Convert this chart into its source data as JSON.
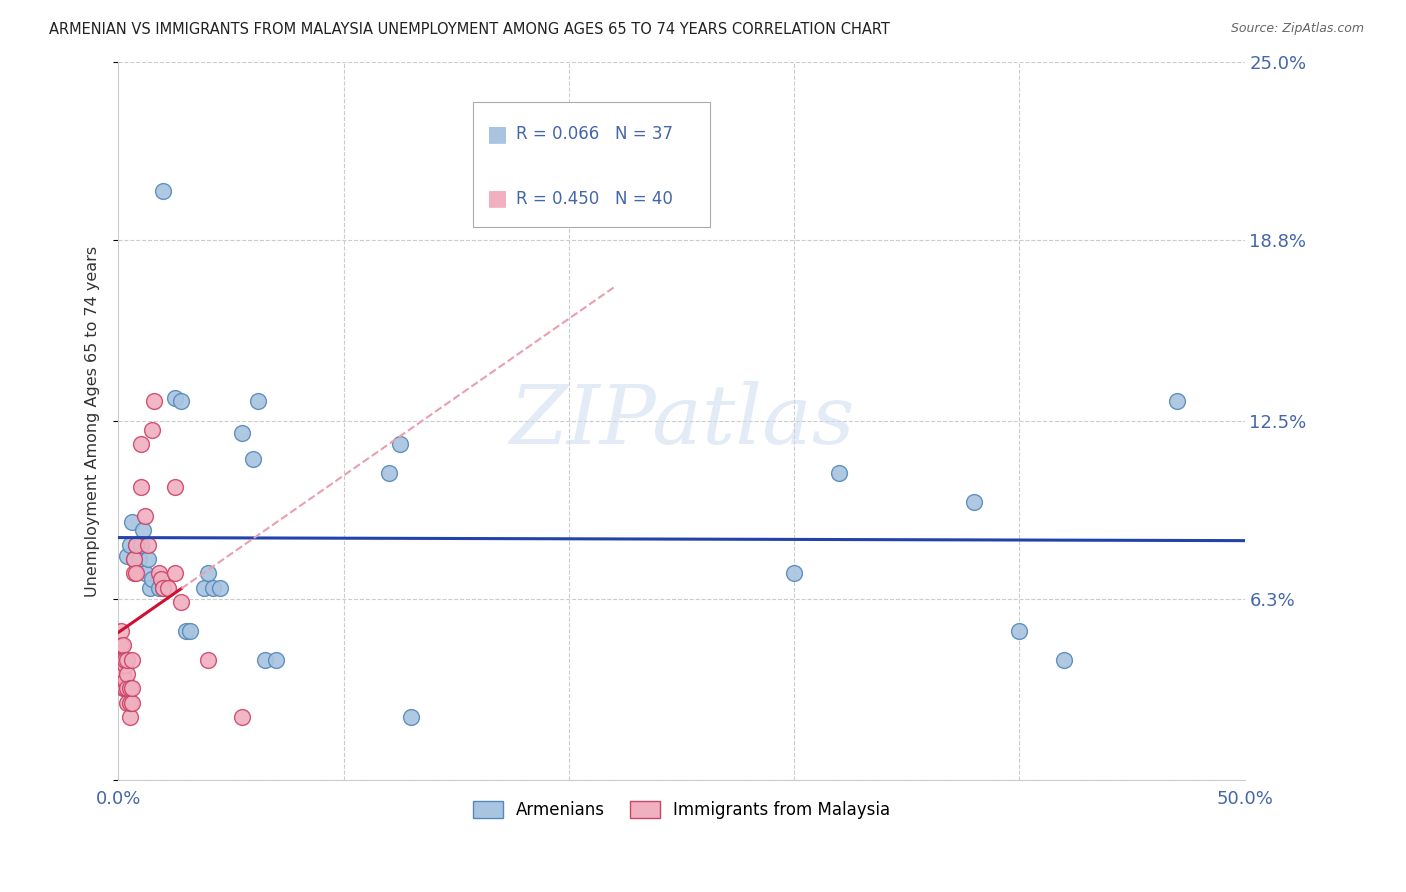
{
  "title": "ARMENIAN VS IMMIGRANTS FROM MALAYSIA UNEMPLOYMENT AMONG AGES 65 TO 74 YEARS CORRELATION CHART",
  "source": "Source: ZipAtlas.com",
  "ylabel": "Unemployment Among Ages 65 to 74 years",
  "xlim": [
    0,
    0.5
  ],
  "ylim": [
    0,
    0.25
  ],
  "yticks": [
    0.0,
    0.063,
    0.125,
    0.188,
    0.25
  ],
  "ytick_labels": [
    "",
    "6.3%",
    "12.5%",
    "18.8%",
    "25.0%"
  ],
  "xtick_labels_show": [
    "0.0%",
    "50.0%"
  ],
  "xtick_positions_show": [
    0.0,
    0.5
  ],
  "armenian_color": "#a8c4e0",
  "armenian_edge_color": "#5588bb",
  "malaysia_color": "#f0b0c0",
  "malaysia_edge_color": "#cc4466",
  "regression_armenian_color": "#2244aa",
  "regression_malaysia_color": "#cc1133",
  "regression_malaysia_dashed_color": "#e8a0b0",
  "background_color": "#ffffff",
  "watermark": "ZIPatlas",
  "legend_R_armenian": "0.066",
  "legend_N_armenian": "37",
  "legend_R_malaysia": "0.450",
  "legend_N_malaysia": "40",
  "legend_label_armenian": "Armenians",
  "legend_label_malaysia": "Immigrants from Malaysia",
  "armenian_x": [
    0.02,
    0.004,
    0.005,
    0.006,
    0.007,
    0.008,
    0.009,
    0.01,
    0.011,
    0.012,
    0.013,
    0.014,
    0.015,
    0.018,
    0.02,
    0.025,
    0.028,
    0.03,
    0.032,
    0.038,
    0.04,
    0.042,
    0.045,
    0.055,
    0.06,
    0.062,
    0.065,
    0.07,
    0.12,
    0.125,
    0.13,
    0.3,
    0.32,
    0.38,
    0.4,
    0.42,
    0.47
  ],
  "armenian_y": [
    0.205,
    0.078,
    0.082,
    0.09,
    0.077,
    0.082,
    0.077,
    0.082,
    0.087,
    0.072,
    0.077,
    0.067,
    0.07,
    0.067,
    0.067,
    0.133,
    0.132,
    0.052,
    0.052,
    0.067,
    0.072,
    0.067,
    0.067,
    0.121,
    0.112,
    0.132,
    0.042,
    0.042,
    0.107,
    0.117,
    0.022,
    0.072,
    0.107,
    0.097,
    0.052,
    0.042,
    0.132
  ],
  "malaysia_x": [
    0.001,
    0.001,
    0.001,
    0.002,
    0.002,
    0.002,
    0.002,
    0.003,
    0.003,
    0.003,
    0.003,
    0.004,
    0.004,
    0.004,
    0.004,
    0.005,
    0.005,
    0.005,
    0.006,
    0.006,
    0.006,
    0.007,
    0.007,
    0.008,
    0.008,
    0.01,
    0.01,
    0.012,
    0.013,
    0.015,
    0.016,
    0.018,
    0.019,
    0.02,
    0.022,
    0.025,
    0.025,
    0.028,
    0.04,
    0.055
  ],
  "malaysia_y": [
    0.042,
    0.047,
    0.052,
    0.032,
    0.037,
    0.042,
    0.047,
    0.032,
    0.035,
    0.04,
    0.042,
    0.027,
    0.032,
    0.037,
    0.042,
    0.022,
    0.027,
    0.032,
    0.027,
    0.032,
    0.042,
    0.072,
    0.077,
    0.072,
    0.082,
    0.102,
    0.117,
    0.092,
    0.082,
    0.122,
    0.132,
    0.072,
    0.07,
    0.067,
    0.067,
    0.072,
    0.102,
    0.062,
    0.042,
    0.022
  ]
}
